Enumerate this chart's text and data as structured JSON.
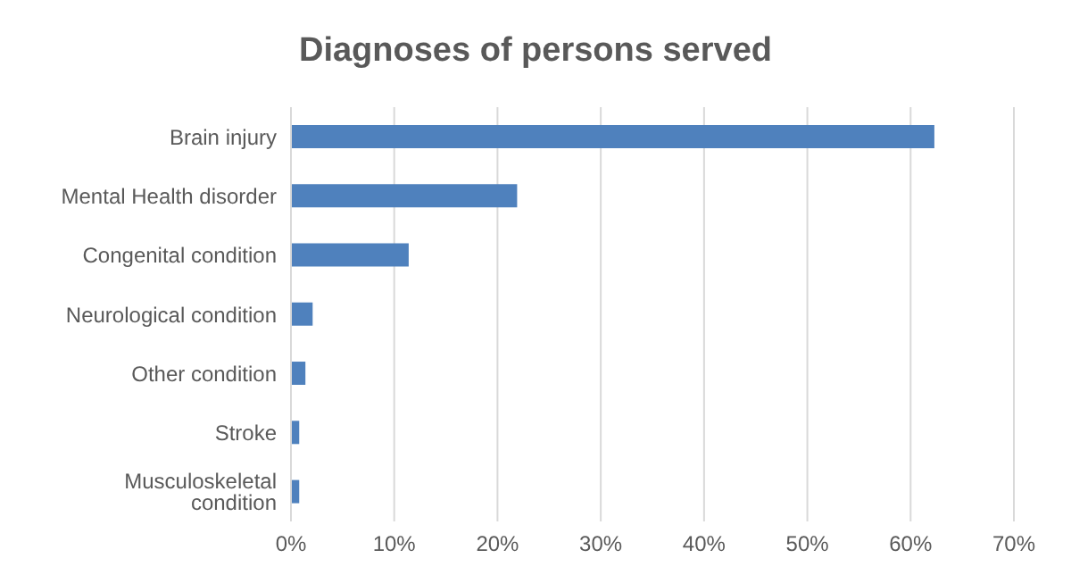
{
  "chart_data": {
    "type": "bar",
    "orientation": "horizontal",
    "title": "Diagnoses of persons served",
    "categories": [
      "Brain injury",
      "Mental Health disorder",
      "Congenital condition",
      "Neurological condition",
      "Other condition",
      "Stroke",
      "Musculoskeletal condition"
    ],
    "values": [
      62.3,
      21.9,
      11.4,
      2.1,
      1.4,
      0.8,
      0.8
    ],
    "color": "#4f81bd",
    "xlim": [
      0,
      70
    ],
    "xticks": [
      {
        "value": 0,
        "label": "0%"
      },
      {
        "value": 10,
        "label": "10%"
      },
      {
        "value": 20,
        "label": "20%"
      },
      {
        "value": 30,
        "label": "30%"
      },
      {
        "value": 40,
        "label": "40%"
      },
      {
        "value": 50,
        "label": "50%"
      },
      {
        "value": 60,
        "label": "60%"
      },
      {
        "value": 70,
        "label": "70%"
      }
    ],
    "grid": "x"
  }
}
